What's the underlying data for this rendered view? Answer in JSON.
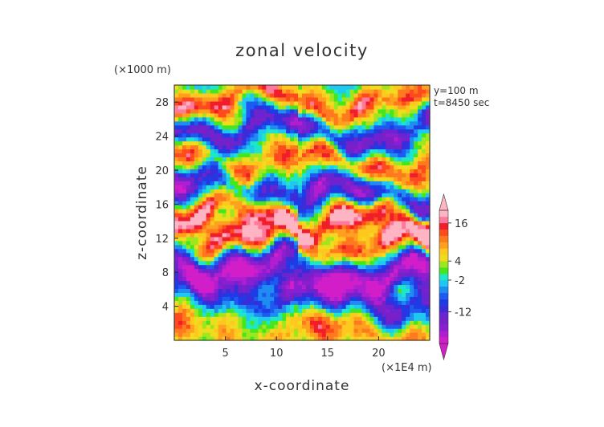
{
  "chart_data": {
    "type": "heatmap",
    "title": "zonal velocity",
    "xlabel": "x-coordinate",
    "ylabel": "z-coordinate",
    "x_units": "(×1E4 m)",
    "y_units": "(×1000 m)",
    "annotations": [
      "y=100 m",
      "t=8450 sec"
    ],
    "xlim": [
      0,
      25
    ],
    "ylim": [
      0,
      30
    ],
    "x_ticks": [
      5,
      10,
      15,
      20
    ],
    "y_ticks": [
      4,
      8,
      12,
      16,
      20,
      24,
      28
    ],
    "colorbar": {
      "tick_values": [
        16,
        4,
        -2,
        -12
      ],
      "tick_labels": [
        "16",
        "4",
        "-2",
        "-12"
      ],
      "levels": [
        -22,
        -20,
        -18,
        -16,
        -14,
        -12,
        -10,
        -8,
        -6,
        -4,
        -2,
        0,
        2,
        4,
        6,
        8,
        10,
        12,
        14,
        16,
        18,
        20
      ],
      "colors": [
        "#d21ec8",
        "#b01ed0",
        "#8c1ed2",
        "#7a20c8",
        "#6a24d0",
        "#3a2cd8",
        "#1e3ce6",
        "#1e5af0",
        "#1e8cf0",
        "#1ec8f0",
        "#1ee6c8",
        "#46e61e",
        "#a0e61e",
        "#f0dc1e",
        "#ffc81e",
        "#ffa01e",
        "#ff7a1e",
        "#ff4a1e",
        "#f01e2a",
        "#ff7a9a",
        "#ffb4c4"
      ],
      "range": [
        -22,
        20
      ]
    },
    "field_description": "Wavy banded zonal velocity field: strong positive core near z=12-14 (x>12), negative bands near z=9-11 and z=17-19, positive band z=14-17 (x<12), alternating structure aloft",
    "bands": [
      {
        "z": 2.0,
        "value": 10,
        "width": 2.5
      },
      {
        "z": 5.5,
        "value": -14,
        "width": 2.2
      },
      {
        "z": 9.0,
        "value": -20,
        "width": 2.0
      },
      {
        "z": 12.0,
        "value": 16,
        "width": 1.8
      },
      {
        "z": 15.0,
        "value": 18,
        "width": 1.6
      },
      {
        "z": 18.0,
        "value": -16,
        "width": 1.8
      },
      {
        "z": 21.5,
        "value": 12,
        "width": 1.8
      },
      {
        "z": 25.0,
        "value": -14,
        "width": 1.6
      },
      {
        "z": 28.5,
        "value": 14,
        "width": 1.5
      }
    ]
  }
}
